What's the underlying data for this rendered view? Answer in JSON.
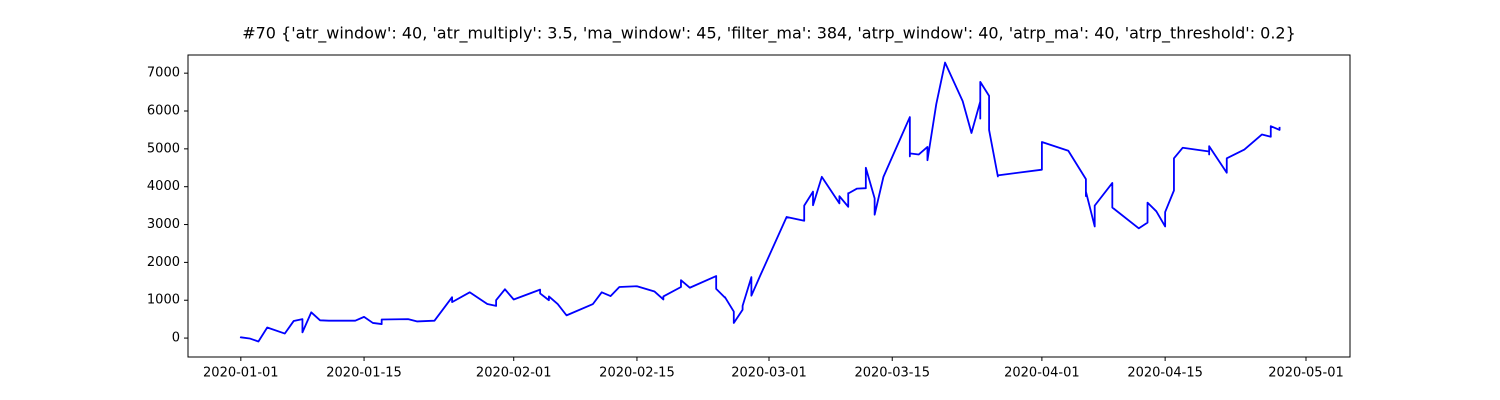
{
  "chart_data": {
    "type": "line",
    "title": "#70 {'atr_window': 40, 'atr_multiply': 3.5, 'ma_window': 45, 'filter_ma': 384, 'atrp_window': 40, 'atrp_ma': 40, 'atrp_threshold': 0.2}",
    "color": "#0000ff",
    "x": [
      "2020-01-01",
      "2020-01-01",
      "2020-01-02",
      "2020-01-03",
      "2020-01-04",
      "2020-01-06",
      "2020-01-07",
      "2020-01-08",
      "2020-01-08",
      "2020-01-09",
      "2020-01-10",
      "2020-01-11",
      "2020-01-14",
      "2020-01-15",
      "2020-01-16",
      "2020-01-17",
      "2020-01-17",
      "2020-01-20",
      "2020-01-21",
      "2020-01-23",
      "2020-01-25",
      "2020-01-25",
      "2020-01-27",
      "2020-01-29",
      "2020-01-30",
      "2020-01-30",
      "2020-01-31",
      "2020-02-01",
      "2020-02-04",
      "2020-02-04",
      "2020-02-05",
      "2020-02-05",
      "2020-02-06",
      "2020-02-07",
      "2020-02-10",
      "2020-02-11",
      "2020-02-12",
      "2020-02-13",
      "2020-02-15",
      "2020-02-17",
      "2020-02-18",
      "2020-02-18",
      "2020-02-20",
      "2020-02-20",
      "2020-02-21",
      "2020-02-24",
      "2020-02-24",
      "2020-02-25",
      "2020-02-25",
      "2020-02-26",
      "2020-02-26",
      "2020-02-27",
      "2020-02-27",
      "2020-02-28",
      "2020-02-28",
      "2020-02-29",
      "2020-03-03",
      "2020-03-05",
      "2020-03-05",
      "2020-03-06",
      "2020-03-06",
      "2020-03-07",
      "2020-03-09",
      "2020-03-09",
      "2020-03-10",
      "2020-03-10",
      "2020-03-10",
      "2020-03-11",
      "2020-03-12",
      "2020-03-12",
      "2020-03-12",
      "2020-03-12",
      "2020-03-13",
      "2020-03-13",
      "2020-03-14",
      "2020-03-17",
      "2020-03-17",
      "2020-03-17",
      "2020-03-18",
      "2020-03-19",
      "2020-03-19",
      "2020-03-20",
      "2020-03-21",
      "2020-03-23",
      "2020-03-24",
      "2020-03-25",
      "2020-03-25",
      "2020-03-25",
      "2020-03-26",
      "2020-03-26",
      "2020-03-27",
      "2020-03-27",
      "2020-04-01",
      "2020-04-01",
      "2020-04-04",
      "2020-04-06",
      "2020-04-06",
      "2020-04-06",
      "2020-04-07",
      "2020-04-07",
      "2020-04-09",
      "2020-04-09",
      "2020-04-12",
      "2020-04-13",
      "2020-04-13",
      "2020-04-14",
      "2020-04-15",
      "2020-04-15",
      "2020-04-16",
      "2020-04-16",
      "2020-04-17",
      "2020-04-20",
      "2020-04-20",
      "2020-04-20",
      "2020-04-22",
      "2020-04-22",
      "2020-04-24",
      "2020-04-26",
      "2020-04-27",
      "2020-04-27",
      "2020-04-28",
      "2020-04-28"
    ],
    "values": [
      0,
      20,
      -10,
      -90,
      280,
      120,
      450,
      500,
      150,
      680,
      470,
      460,
      460,
      560,
      400,
      370,
      490,
      500,
      440,
      460,
      1080,
      950,
      1210,
      900,
      850,
      1000,
      1290,
      1020,
      1280,
      1180,
      1000,
      1100,
      900,
      600,
      900,
      1210,
      1110,
      1350,
      1370,
      1230,
      1020,
      1100,
      1350,
      1530,
      1330,
      1640,
      1300,
      1070,
      1080,
      700,
      400,
      750,
      850,
      1610,
      1120,
      1650,
      3200,
      3100,
      3500,
      3870,
      3510,
      4260,
      3560,
      3750,
      3470,
      3830,
      3820,
      3950,
      3960,
      4500,
      4000,
      4500,
      3690,
      3260,
      4260,
      5840,
      4800,
      4880,
      4850,
      5050,
      4700,
      6180,
      7280,
      6260,
      5420,
      6250,
      5800,
      6770,
      6400,
      5500,
      4270,
      4300,
      4450,
      5180,
      4950,
      4200,
      3750,
      3870,
      2950,
      3500,
      4100,
      3450,
      2900,
      3050,
      3580,
      3350,
      2950,
      3330,
      3900,
      4750,
      5030,
      4930,
      4850,
      5070,
      4370,
      4750,
      4980,
      5380,
      5320,
      5600,
      5500,
      5580
    ],
    "xlim": [
      "2019-12-26",
      "2020-05-06"
    ],
    "xticks": [
      "2020-01-01",
      "2020-01-15",
      "2020-02-01",
      "2020-02-15",
      "2020-03-01",
      "2020-03-15",
      "2020-04-01",
      "2020-04-15",
      "2020-05-01"
    ],
    "ylim": [
      -500,
      7480
    ],
    "yticks": [
      0,
      1000,
      2000,
      3000,
      4000,
      5000,
      6000,
      7000
    ]
  }
}
